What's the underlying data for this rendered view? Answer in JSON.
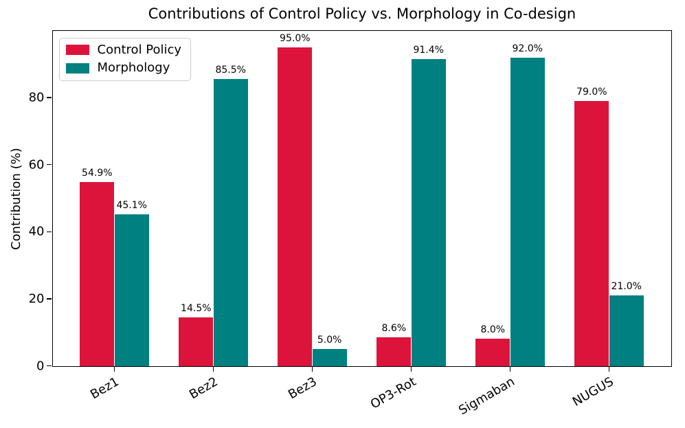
{
  "chart_data": {
    "type": "bar",
    "title": "Contributions of Control Policy vs. Morphology in Co-design",
    "xlabel": "",
    "ylabel": "Contribution (%)",
    "categories": [
      "Bez1",
      "Bez2",
      "Bez3",
      "OP3-Rot",
      "Sigmaban",
      "NUGUS"
    ],
    "series": [
      {
        "name": "Control Policy",
        "color": "#DC143C",
        "values": [
          54.9,
          14.5,
          95.0,
          8.6,
          8.0,
          79.0
        ],
        "labels": [
          "54.9%",
          "14.5%",
          "95.0%",
          "8.6%",
          "8.0%",
          "79.0%"
        ]
      },
      {
        "name": "Morphology",
        "color": "#008080",
        "values": [
          45.1,
          85.5,
          5.0,
          91.4,
          92.0,
          21.0
        ],
        "labels": [
          "45.1%",
          "85.5%",
          "5.0%",
          "91.4%",
          "92.0%",
          "21.0%"
        ]
      }
    ],
    "ylim": [
      0,
      100
    ],
    "yticks": [
      0,
      20,
      40,
      60,
      80
    ],
    "ytick_labels": [
      "0",
      "20",
      "40",
      "60",
      "80"
    ],
    "grid": false,
    "legend_position": "upper-left",
    "bar_width_units": 0.35,
    "text_color": "#000000",
    "background_color": "#ffffff"
  }
}
